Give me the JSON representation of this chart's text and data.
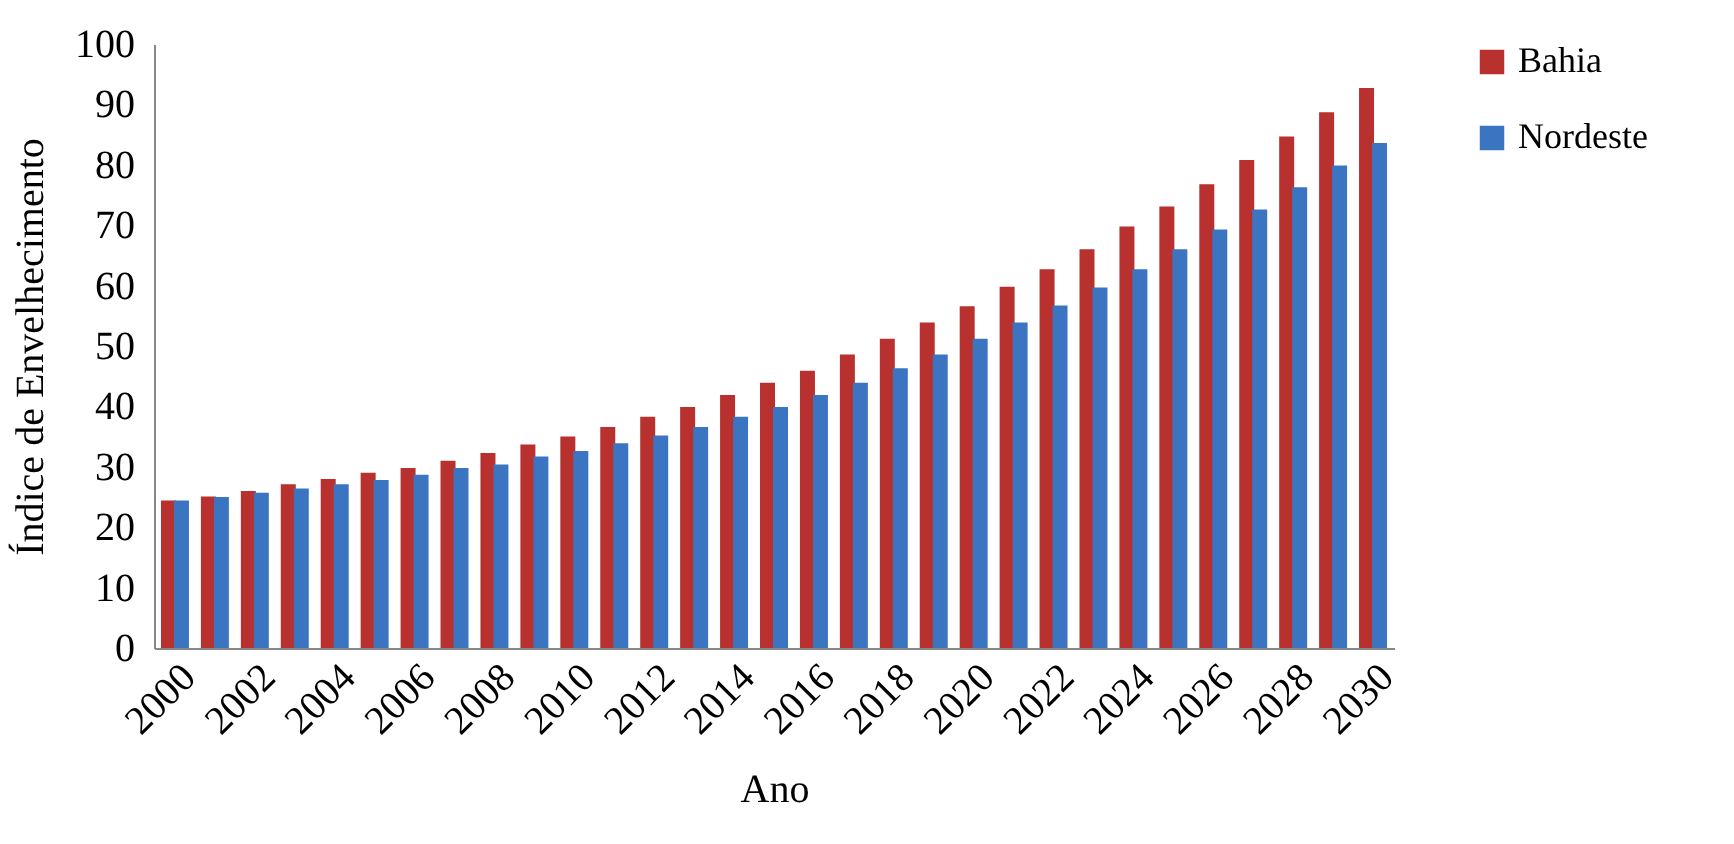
{
  "chart_data": {
    "type": "bar",
    "xlabel": "Ano",
    "ylabel": "Índice de Envelhecimento",
    "categories": [
      "2000",
      null,
      "2002",
      null,
      "2004",
      null,
      "2006",
      null,
      "2008",
      null,
      "2010",
      null,
      "2012",
      null,
      "2014",
      null,
      "2016",
      null,
      "2018",
      null,
      "2020",
      null,
      "2022",
      null,
      "2024",
      null,
      "2026",
      null,
      "2028",
      null,
      "2030"
    ],
    "series": [
      {
        "name": "Bahia",
        "color": "#b8312f",
        "values": [
          24.4,
          25.1,
          26.0,
          27.1,
          28.0,
          29.0,
          29.8,
          31.0,
          32.3,
          33.7,
          35.0,
          36.6,
          38.3,
          39.9,
          41.9,
          43.9,
          45.9,
          48.6,
          51.2,
          53.9,
          56.6,
          59.8,
          62.7,
          66.0,
          69.8,
          73.1,
          76.8,
          80.8,
          84.7,
          88.7,
          92.7
        ]
      },
      {
        "name": "Nordeste",
        "color": "#3b74c0",
        "values": [
          24.4,
          25.0,
          25.7,
          26.4,
          27.1,
          27.8,
          28.7,
          29.8,
          30.4,
          31.7,
          32.6,
          33.9,
          35.2,
          36.6,
          38.3,
          39.9,
          41.9,
          43.9,
          46.3,
          48.6,
          51.2,
          53.9,
          56.7,
          59.7,
          62.7,
          66.0,
          69.3,
          72.6,
          76.3,
          79.9,
          83.6
        ]
      }
    ],
    "ylim": [
      0,
      100
    ],
    "yticks": [
      0,
      10,
      20,
      30,
      40,
      50,
      60,
      70,
      80,
      90,
      100
    ],
    "legend": "right"
  }
}
